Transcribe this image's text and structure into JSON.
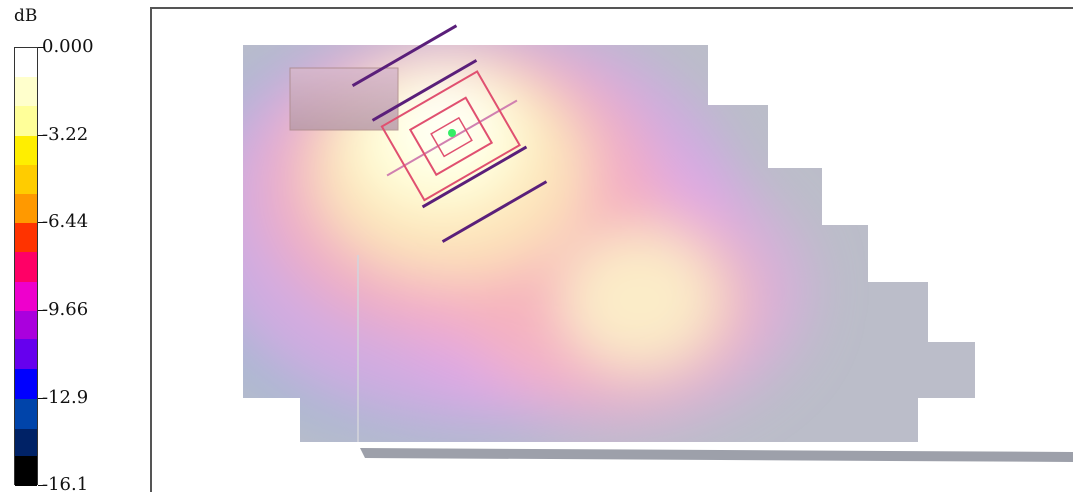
{
  "chart_data": {
    "type": "heatmap",
    "title": "",
    "colorbar": {
      "unit": "dB",
      "tick_labels": [
        "0.000",
        "-3.22",
        "-6.44",
        "-9.66",
        "-12.9",
        "-16.1"
      ],
      "tick_values": [
        0.0,
        -3.22,
        -6.44,
        -9.66,
        -12.9,
        -16.1
      ],
      "range": [
        -16.1,
        0.0
      ],
      "levels": [
        {
          "from": 0.0,
          "to": -1.07,
          "color": "#ffffff"
        },
        {
          "from": -1.07,
          "to": -2.15,
          "color": "#ffffcc"
        },
        {
          "from": -2.15,
          "to": -3.22,
          "color": "#ffff99"
        },
        {
          "from": -3.22,
          "to": -4.29,
          "color": "#ffee00"
        },
        {
          "from": -4.29,
          "to": -5.37,
          "color": "#ffcc00"
        },
        {
          "from": -5.37,
          "to": -6.44,
          "color": "#ff9900"
        },
        {
          "from": -6.44,
          "to": -7.51,
          "color": "#ff3300"
        },
        {
          "from": -7.51,
          "to": -8.59,
          "color": "#ff0066"
        },
        {
          "from": -8.59,
          "to": -9.66,
          "color": "#ee00cc"
        },
        {
          "from": -9.66,
          "to": -10.7,
          "color": "#aa00dd"
        },
        {
          "from": -10.7,
          "to": -11.8,
          "color": "#6600ee"
        },
        {
          "from": -11.8,
          "to": -12.9,
          "color": "#0000ff"
        },
        {
          "from": -12.9,
          "to": -14.0,
          "color": "#0044aa"
        },
        {
          "from": -14.0,
          "to": -15.0,
          "color": "#002266"
        },
        {
          "from": -15.0,
          "to": -16.1,
          "color": "#000000"
        }
      ]
    }
  },
  "scene": {
    "colors": {
      "geometry": "#b7b9c6",
      "box": "#c7b3c1",
      "antenna_dark": "#5a1f7a",
      "antenna_light": "#c05585",
      "feed_point": "#33ee66",
      "frame": "#555555"
    }
  }
}
